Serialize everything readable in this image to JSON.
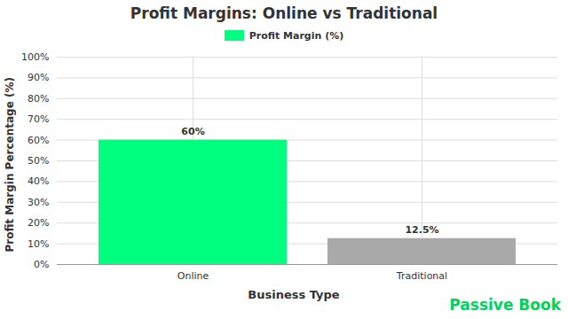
{
  "chart_data": {
    "type": "bar",
    "title": "Profit Margins: Online vs Traditional",
    "x_label": "Business Type",
    "y_label": "Profit Margin Percentage (%)",
    "categories": [
      "Online",
      "Traditional"
    ],
    "series": [
      {
        "name": "Profit Margin (%)",
        "color": "#00ff7f",
        "colors": [
          "#00ff7f",
          "#a9a9a9"
        ],
        "values": [
          60,
          12.5
        ],
        "value_labels": [
          "60%",
          "12.5%"
        ]
      }
    ],
    "ylim": [
      0,
      100
    ],
    "yticks": [
      {
        "value": 0,
        "label": "0%"
      },
      {
        "value": 10,
        "label": "10%"
      },
      {
        "value": 20,
        "label": "20%"
      },
      {
        "value": 30,
        "label": "30%"
      },
      {
        "value": 40,
        "label": "40%"
      },
      {
        "value": 50,
        "label": "50%"
      },
      {
        "value": 60,
        "label": "60%"
      },
      {
        "value": 70,
        "label": "70%"
      },
      {
        "value": 80,
        "label": "80%"
      },
      {
        "value": 90,
        "label": "90%"
      },
      {
        "value": 100,
        "label": "100%"
      }
    ],
    "grid": true,
    "legend": "top",
    "data_labels": true,
    "annotations": [
      "Passive Book"
    ]
  }
}
